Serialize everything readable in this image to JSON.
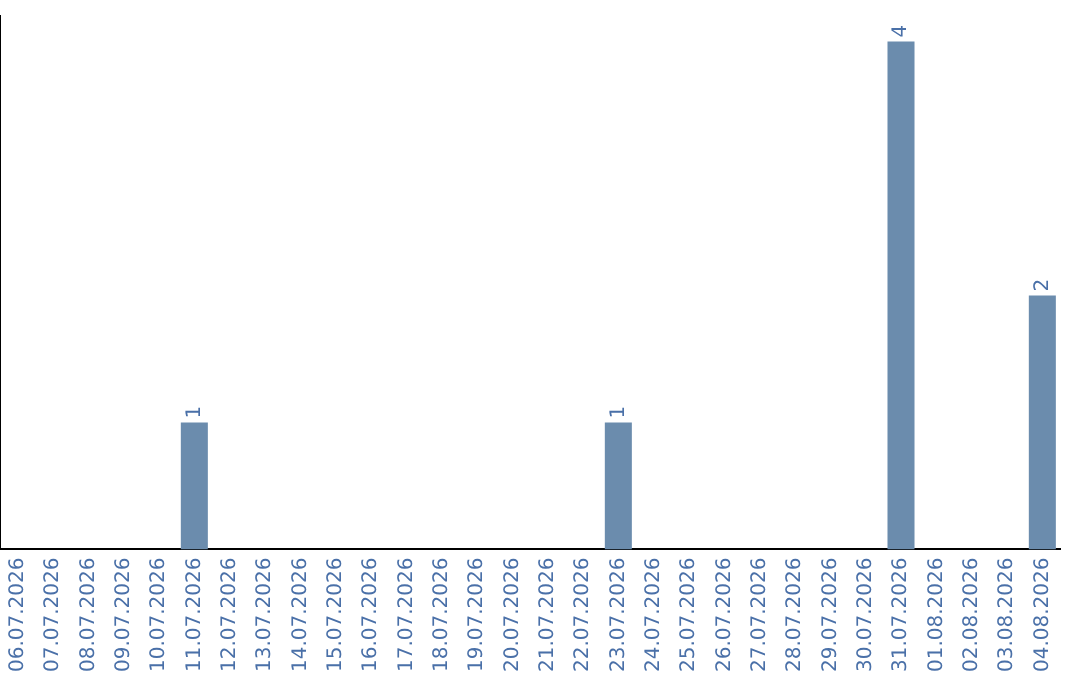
{
  "chart_data": {
    "type": "bar",
    "categories": [
      "06.07.2026",
      "07.07.2026",
      "08.07.2026",
      "09.07.2026",
      "10.07.2026",
      "11.07.2026",
      "12.07.2026",
      "13.07.2026",
      "14.07.2026",
      "15.07.2026",
      "16.07.2026",
      "17.07.2026",
      "18.07.2026",
      "19.07.2026",
      "20.07.2026",
      "21.07.2026",
      "22.07.2026",
      "23.07.2026",
      "24.07.2026",
      "25.07.2026",
      "26.07.2026",
      "27.07.2026",
      "28.07.2026",
      "29.07.2026",
      "30.07.2026",
      "31.07.2026",
      "01.08.2026",
      "02.08.2026",
      "03.08.2026",
      "04.08.2026"
    ],
    "values": [
      0,
      0,
      0,
      0,
      0,
      1,
      0,
      0,
      0,
      0,
      0,
      0,
      0,
      0,
      0,
      0,
      0,
      1,
      0,
      0,
      0,
      0,
      0,
      0,
      0,
      4,
      0,
      0,
      0,
      2
    ],
    "value_labels": [
      null,
      null,
      null,
      null,
      null,
      "1",
      null,
      null,
      null,
      null,
      null,
      null,
      null,
      null,
      null,
      null,
      null,
      "1",
      null,
      null,
      null,
      null,
      null,
      null,
      null,
      "4",
      null,
      null,
      null,
      "2"
    ],
    "color": "#6b8cad",
    "ylim": [
      0,
      4.2
    ],
    "tick_labels": "x",
    "grid": false,
    "legend": false
  }
}
